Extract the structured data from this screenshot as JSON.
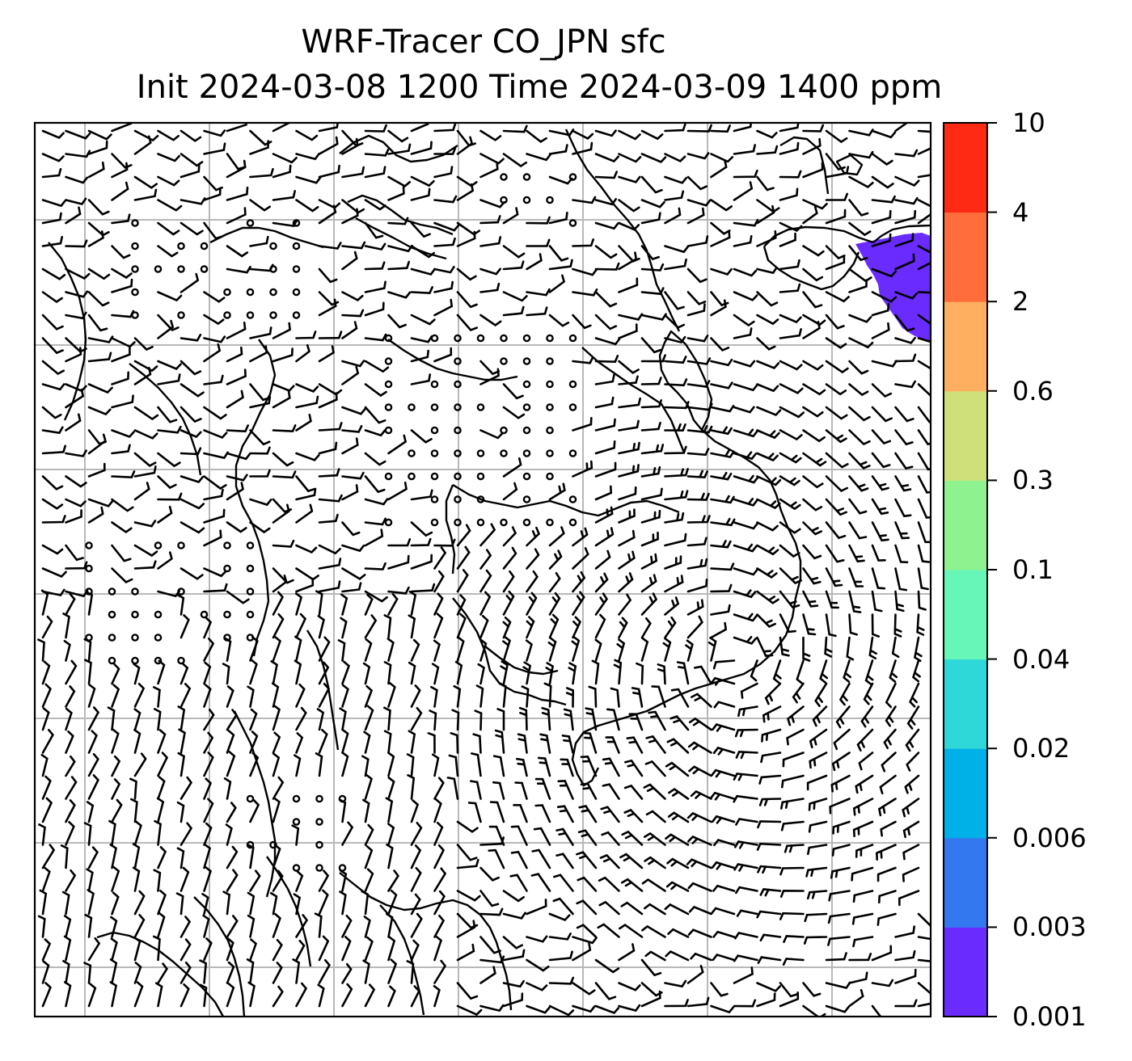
{
  "title": {
    "line1": "WRF-Tracer CO_JPN sfc",
    "line2": "Init 2024-03-08 1200 Time 2024-03-09 1400 ppm"
  },
  "colorbar": {
    "levels": [
      "0.001",
      "0.003",
      "0.006",
      "0.02",
      "0.04",
      "0.1",
      "0.3",
      "0.6",
      "2",
      "4",
      "10"
    ],
    "colors": [
      "#6a2bff",
      "#3478f0",
      "#00b0e8",
      "#2ed8d8",
      "#66f7b8",
      "#8ef28e",
      "#cfe07a",
      "#ffaf5f",
      "#ff6e3a",
      "#ff2a14"
    ]
  },
  "map": {
    "plume_color": "#6a2bff",
    "grid_color": "#b8b8b8",
    "coast_color": "#000000",
    "barb_color": "#000000",
    "plume_level": "0.001"
  }
}
